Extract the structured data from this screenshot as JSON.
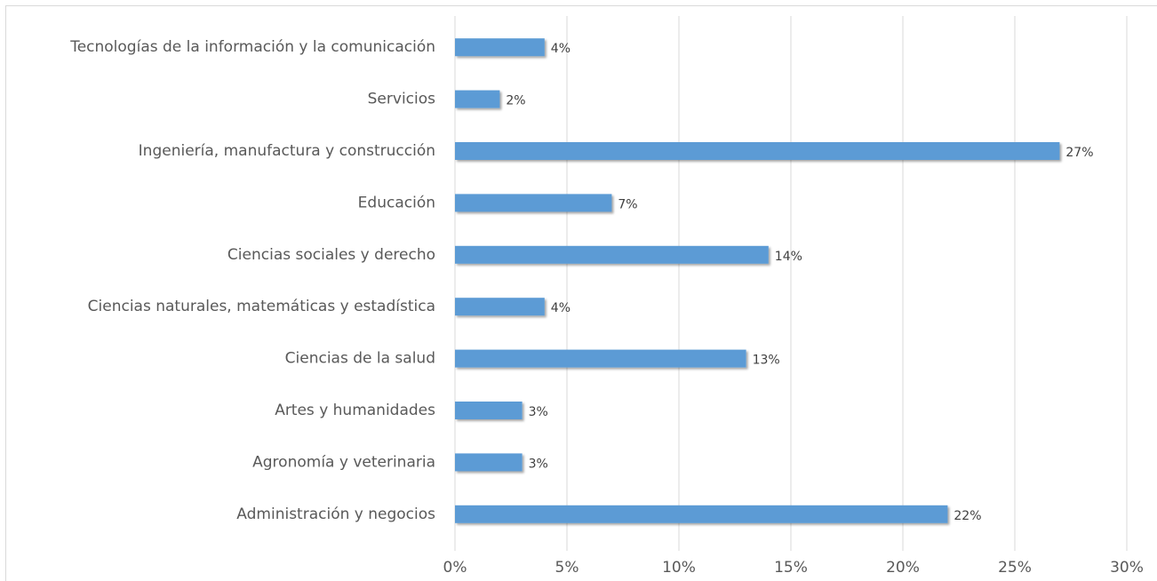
{
  "chart_data": {
    "type": "bar",
    "orientation": "horizontal",
    "categories": [
      "Tecnologías de la información y la comunicación",
      "Servicios",
      "Ingeniería, manufactura y construcción",
      "Educación",
      "Ciencias sociales y derecho",
      "Ciencias naturales, matemáticas y estadística",
      "Ciencias de la salud",
      "Artes y humanidades",
      "Agronomía y veterinaria",
      "Administración y negocios"
    ],
    "values": [
      4,
      2,
      27,
      7,
      14,
      4,
      13,
      3,
      3,
      22
    ],
    "value_labels": [
      "4%",
      "2%",
      "27%",
      "7%",
      "14%",
      "4%",
      "13%",
      "3%",
      "3%",
      "22%"
    ],
    "color": "#5b9bd5",
    "xlim": [
      0,
      30
    ],
    "xticks": [
      {
        "value": 0,
        "label": "0%"
      },
      {
        "value": 5,
        "label": "5%"
      },
      {
        "value": 10,
        "label": "10%"
      },
      {
        "value": 15,
        "label": "15%"
      },
      {
        "value": 20,
        "label": "20%"
      },
      {
        "value": 25,
        "label": "25%"
      },
      {
        "value": 30,
        "label": "30%"
      }
    ],
    "grid": true
  }
}
